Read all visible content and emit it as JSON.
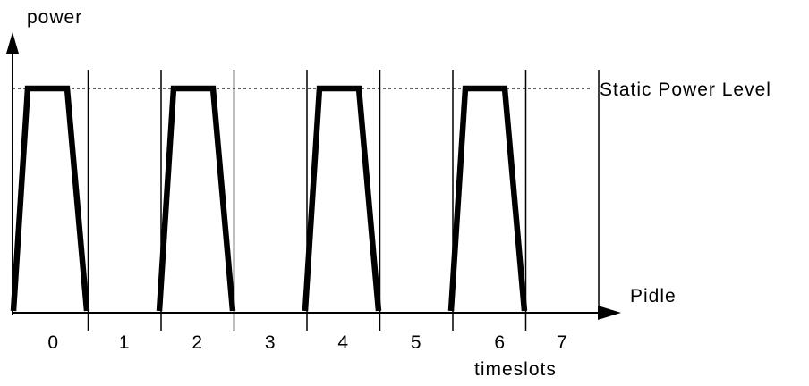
{
  "labels": {
    "y_axis": "power",
    "x_axis": "Pidle",
    "static_level": "Static Power Level",
    "timeslots": "timeslots"
  },
  "slots": [
    "0",
    "1",
    "2",
    "3",
    "4",
    "5",
    "6",
    "7"
  ],
  "pulse_slots": [
    0,
    2,
    4,
    6
  ]
}
